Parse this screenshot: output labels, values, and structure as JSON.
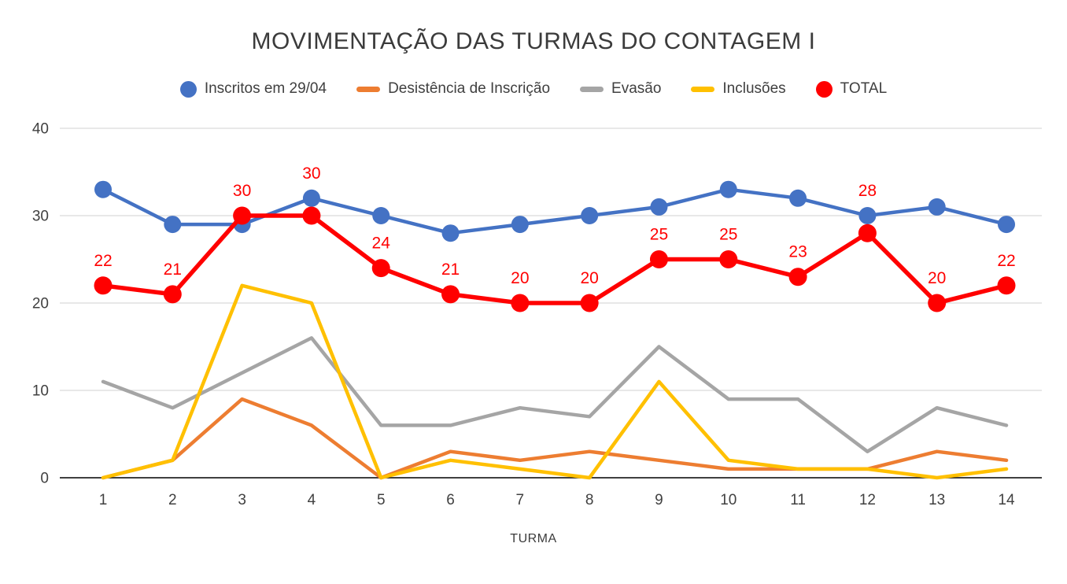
{
  "chart_data": {
    "type": "line",
    "title": "MOVIMENTAÇÃO DAS TURMAS DO CONTAGEM I",
    "xlabel": "TURMA",
    "ylabel": "",
    "ylim": [
      0,
      40
    ],
    "yticks": [
      0,
      10,
      20,
      30,
      40
    ],
    "grid": true,
    "legend_position": "top",
    "categories": [
      "1",
      "2",
      "3",
      "4",
      "5",
      "6",
      "7",
      "8",
      "9",
      "10",
      "11",
      "12",
      "13",
      "14"
    ],
    "colors": {
      "grid": "#d9d9d9",
      "axis": "#000000",
      "tick_text": "#404040"
    },
    "series": [
      {
        "name": "Inscritos em 29/04",
        "color": "#4472C4",
        "marker": "circle",
        "marker_radius": 11,
        "line_width": 4.5,
        "data_labels": false,
        "values": [
          33,
          29,
          29,
          32,
          30,
          28,
          29,
          30,
          31,
          33,
          32,
          30,
          31,
          29
        ]
      },
      {
        "name": "Desistência de Inscrição",
        "color": "#ED7D31",
        "marker": "none",
        "line_width": 4.5,
        "data_labels": false,
        "values": [
          0,
          2,
          9,
          6,
          0,
          3,
          2,
          3,
          2,
          1,
          1,
          1,
          3,
          2
        ]
      },
      {
        "name": "Evasão",
        "color": "#A5A5A5",
        "marker": "none",
        "line_width": 4.5,
        "data_labels": false,
        "values": [
          11,
          8,
          12,
          16,
          6,
          6,
          8,
          7,
          15,
          9,
          9,
          3,
          8,
          6
        ]
      },
      {
        "name": "Inclusões",
        "color": "#FFC000",
        "marker": "none",
        "line_width": 4.5,
        "data_labels": false,
        "values": [
          0,
          2,
          22,
          20,
          0,
          2,
          1,
          0,
          11,
          2,
          1,
          1,
          0,
          1
        ]
      },
      {
        "name": "TOTAL",
        "color": "#FF0000",
        "marker": "circle",
        "marker_radius": 11.5,
        "line_width": 5.5,
        "data_labels": true,
        "values": [
          22,
          21,
          30,
          30,
          24,
          21,
          20,
          20,
          25,
          25,
          23,
          28,
          20,
          22
        ]
      }
    ]
  }
}
